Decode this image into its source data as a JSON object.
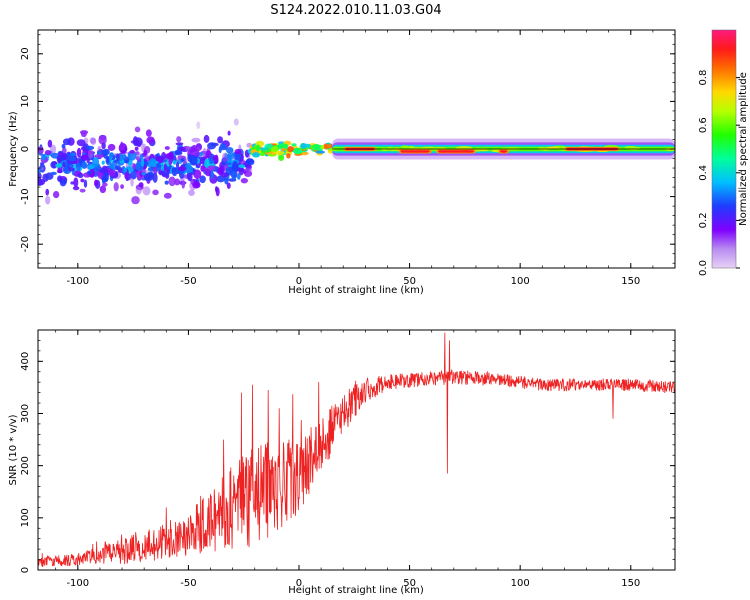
{
  "figure": {
    "title": "S124.2022.010.11.03.G04"
  },
  "chart_data": [
    {
      "type": "heatmap",
      "xlabel": "Height of straight line (km)",
      "ylabel": "Frequency (Hz)",
      "xlim": [
        -118,
        170
      ],
      "ylim": [
        -25,
        25
      ],
      "xticks": [
        -100,
        -50,
        0,
        50,
        100,
        150
      ],
      "yticks": [
        -20,
        -10,
        0,
        10,
        20
      ],
      "colorbar": {
        "label": "Normalized spectral amplitude",
        "range": [
          0,
          1
        ],
        "ticks": [
          "0.0",
          "0.2",
          "0.4",
          "0.6",
          "0.8"
        ],
        "tick_values": [
          0,
          0.2,
          0.4,
          0.6,
          0.8
        ],
        "colormap": "gist_rainbow_r"
      },
      "features": [
        {
          "segment": "scattered",
          "x_range": [
            -118,
            -22
          ],
          "freq_spread": [
            -12,
            10
          ],
          "freq_center": -3,
          "amplitude": [
            0.1,
            0.4
          ]
        },
        {
          "segment": "transition",
          "x_range": [
            -22,
            15
          ],
          "freq_center": 0,
          "amplitude": [
            0.3,
            0.9
          ]
        },
        {
          "segment": "steady",
          "x_range": [
            15,
            170
          ],
          "freq_center": 0,
          "amplitude": [
            0.6,
            1.0
          ]
        }
      ],
      "hot_spots": [
        {
          "x": 20,
          "x_end": 35,
          "f": 0
        },
        {
          "x": 45,
          "x_end": 60,
          "f": -0.5
        },
        {
          "x": 62,
          "x_end": 80,
          "f": -0.5
        },
        {
          "x": 90,
          "x_end": 95,
          "f": -0.5
        },
        {
          "x": 120,
          "x_end": 145,
          "f": 0
        }
      ]
    },
    {
      "type": "line",
      "xlabel": "Height of straight line (km)",
      "ylabel": "SNR (10 * v/v)",
      "xlim": [
        -118,
        170
      ],
      "ylim": [
        0,
        460
      ],
      "xticks": [
        -100,
        -50,
        0,
        50,
        100,
        150
      ],
      "yticks": [
        0,
        100,
        200,
        300,
        400
      ],
      "color": "#ee2222",
      "envelope": [
        {
          "x": -118,
          "mean": 15,
          "noise": 10
        },
        {
          "x": -100,
          "mean": 20,
          "noise": 12
        },
        {
          "x": -80,
          "mean": 35,
          "noise": 25
        },
        {
          "x": -60,
          "mean": 55,
          "noise": 35
        },
        {
          "x": -45,
          "mean": 80,
          "noise": 50
        },
        {
          "x": -30,
          "mean": 120,
          "noise": 90
        },
        {
          "x": -15,
          "mean": 150,
          "noise": 100
        },
        {
          "x": 0,
          "mean": 180,
          "noise": 70
        },
        {
          "x": 10,
          "mean": 240,
          "noise": 55
        },
        {
          "x": 20,
          "mean": 300,
          "noise": 40
        },
        {
          "x": 30,
          "mean": 345,
          "noise": 25
        },
        {
          "x": 40,
          "mean": 360,
          "noise": 15
        },
        {
          "x": 55,
          "mean": 365,
          "noise": 14
        },
        {
          "x": 70,
          "mean": 370,
          "noise": 14
        },
        {
          "x": 90,
          "mean": 365,
          "noise": 13
        },
        {
          "x": 110,
          "mean": 355,
          "noise": 12
        },
        {
          "x": 130,
          "mean": 355,
          "noise": 12
        },
        {
          "x": 150,
          "mean": 355,
          "noise": 12
        },
        {
          "x": 170,
          "mean": 350,
          "noise": 12
        }
      ],
      "spikes": [
        {
          "x": -60,
          "y": 120
        },
        {
          "x": -34,
          "y": 250
        },
        {
          "x": -26,
          "y": 340
        },
        {
          "x": -21,
          "y": 355
        },
        {
          "x": -14,
          "y": 345
        },
        {
          "x": -9,
          "y": 310
        },
        {
          "x": 9,
          "y": 360
        },
        {
          "x": 66,
          "y": 455
        },
        {
          "x": 67,
          "y": 185
        },
        {
          "x": 68,
          "y": 440
        },
        {
          "x": 142,
          "y": 290
        }
      ]
    }
  ]
}
